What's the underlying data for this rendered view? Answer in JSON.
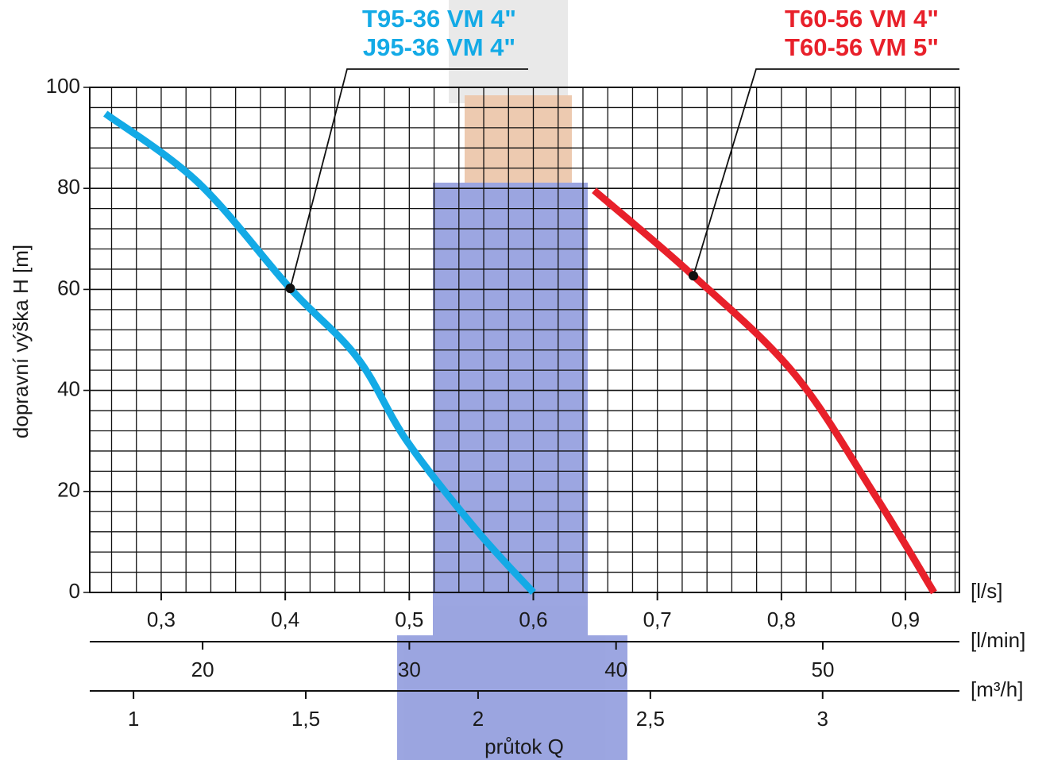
{
  "chart_data": {
    "type": "line",
    "ylabel": "dopravní výška H [m]",
    "xlabel": "průtok Q",
    "ylim": [
      0,
      100
    ],
    "yticks": [
      0,
      20,
      40,
      60,
      80,
      100
    ],
    "ygrid": [
      4,
      8,
      12,
      16,
      24,
      28,
      32,
      36,
      44,
      48,
      52,
      56,
      64,
      68,
      72,
      76,
      84,
      88,
      92,
      96
    ],
    "xgrid": [
      0.26,
      0.28,
      0.3,
      0.32,
      0.34,
      0.36,
      0.38,
      0.4,
      0.42,
      0.44,
      0.46,
      0.48,
      0.5,
      0.52,
      0.54,
      0.56,
      0.58,
      0.6,
      0.62,
      0.64,
      0.66,
      0.68,
      0.7,
      0.72,
      0.74,
      0.76,
      0.78,
      0.8,
      0.82,
      0.84,
      0.86,
      0.88,
      0.9,
      0.92,
      0.94
    ],
    "grid": true,
    "x_axes": [
      {
        "unit": "[l/s]",
        "xlim": [
          0.2424,
          0.9435
        ],
        "xticks": [
          {
            "value": 0.3,
            "label": "0,3"
          },
          {
            "value": 0.4,
            "label": "0,4"
          },
          {
            "value": 0.5,
            "label": "0,5"
          },
          {
            "value": 0.6,
            "label": "0,6"
          },
          {
            "value": 0.7,
            "label": "0,7"
          },
          {
            "value": 0.8,
            "label": "0,8"
          },
          {
            "value": 0.9,
            "label": "0,9"
          }
        ]
      },
      {
        "unit": "[l/min]",
        "xlim": [
          14.54,
          56.61
        ],
        "xticks": [
          20,
          30,
          40,
          50
        ]
      },
      {
        "unit": "[m³/h]",
        "xlim": [
          0.873,
          3.397
        ],
        "xticks": [
          1,
          {
            "value": 1.5,
            "label": "1,5"
          },
          2,
          {
            "value": 2.5,
            "label": "2,5"
          },
          3
        ]
      }
    ],
    "series": [
      {
        "labels": [
          "T95-36 VM 4\"",
          "J95-36 VM 4\""
        ],
        "color": "#13aae6",
        "marker_index": 2,
        "x": [
          0.255,
          0.33,
          0.404,
          0.458,
          0.498,
          0.554,
          0.6
        ],
        "values": [
          94.8,
          81.1,
          60.2,
          46.5,
          30,
          12.4,
          0
        ]
      },
      {
        "labels": [
          "T60-56 VM 4\"",
          "T60-56 VM 5\""
        ],
        "color": "#e8202a",
        "marker_index": 1,
        "x": [
          0.649,
          0.729,
          0.81,
          0.874,
          0.923
        ],
        "values": [
          79.6,
          62.7,
          43.4,
          19.8,
          0
        ]
      }
    ]
  }
}
